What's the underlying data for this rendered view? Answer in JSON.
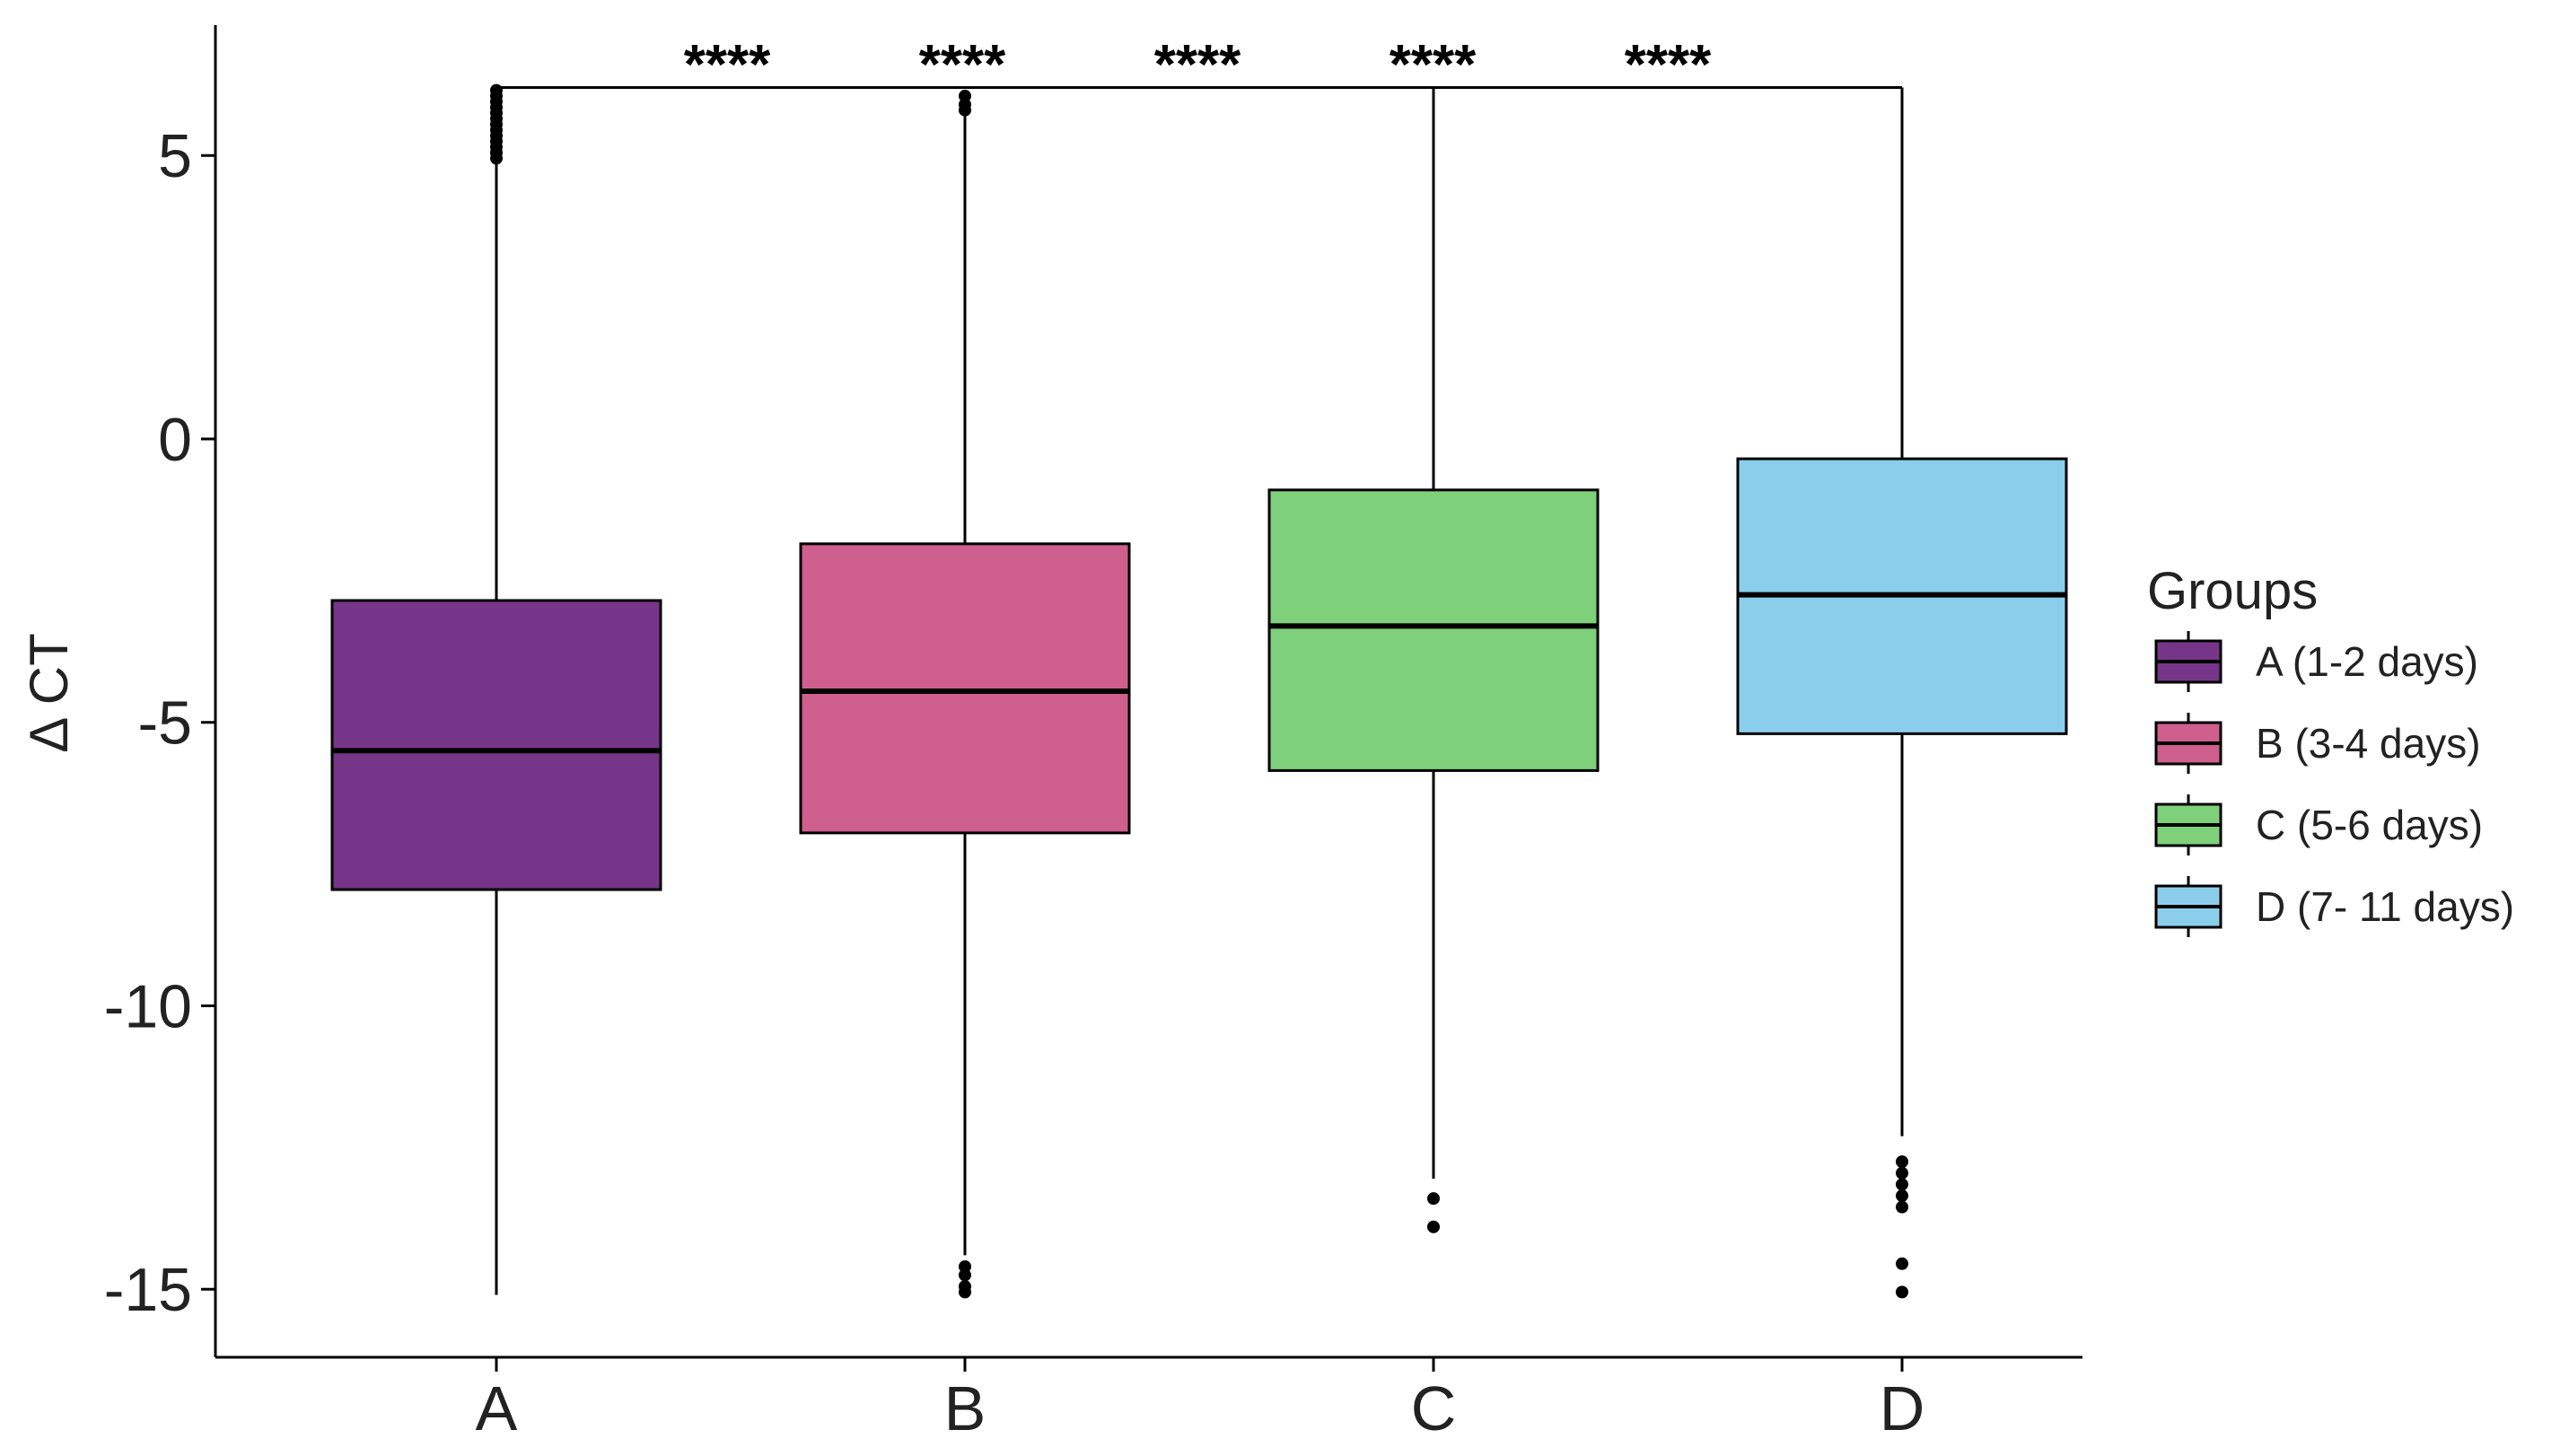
{
  "chart_data": {
    "type": "box",
    "title": "",
    "xlabel": "",
    "ylabel": "Δ CT",
    "ylim": [
      -16.2,
      7.3
    ],
    "yticks": [
      5,
      0,
      -5,
      -10,
      -15
    ],
    "grid": false,
    "categories": [
      "A",
      "B",
      "C",
      "D"
    ],
    "boxes": [
      {
        "category": "A",
        "whisker_low": -15.1,
        "q1": -7.95,
        "median": -5.5,
        "q3": -2.85,
        "whisker_high": 4.9,
        "outliers": [
          4.95,
          5.05,
          5.15,
          5.25,
          5.35,
          5.45,
          5.55,
          5.65,
          5.75,
          5.85,
          5.95,
          6.05,
          6.15
        ]
      },
      {
        "category": "B",
        "whisker_low": -14.4,
        "q1": -6.95,
        "median": -4.45,
        "q3": -1.85,
        "whisker_high": 5.75,
        "outliers": [
          5.8,
          5.9,
          6.05,
          -14.6,
          -14.75,
          -14.95,
          -15.05
        ]
      },
      {
        "category": "C",
        "whisker_low": -13.05,
        "q1": -5.85,
        "median": -3.3,
        "q3": -0.9,
        "whisker_high": 6.2,
        "outliers": [
          -13.4,
          -13.9
        ]
      },
      {
        "category": "D",
        "whisker_low": -12.3,
        "q1": -5.2,
        "median": -2.75,
        "q3": -0.35,
        "whisker_high": 6.2,
        "outliers": [
          -12.75,
          -12.95,
          -13.15,
          -13.35,
          -13.55,
          -14.55,
          -15.05
        ]
      }
    ],
    "significance": {
      "bracket_y": 6.2,
      "from": "A",
      "to": "D",
      "labels": [
        "****",
        "****",
        "****",
        "****",
        "****"
      ]
    },
    "legend": {
      "title": "Groups",
      "placement": "right",
      "entries": [
        {
          "label": "A (1-2 days)",
          "color": "#763588"
        },
        {
          "label": "B (3-4 days)",
          "color": "#CF5F8C"
        },
        {
          "label": "C (5-6 days)",
          "color": "#7ED07A"
        },
        {
          "label": "D (7- 11 days)",
          "color": "#8BCEEC"
        }
      ]
    }
  }
}
